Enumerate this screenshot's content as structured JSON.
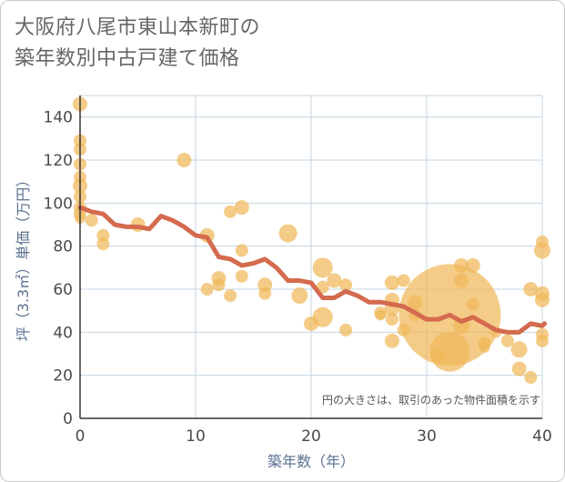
{
  "title_lines": [
    "大阪府八尾市東山本新町の",
    "築年数別中古戸建て価格"
  ],
  "note": "円の大きさは、取引のあった物件面積を示す",
  "colors": {
    "bubble": "#f0b85a",
    "line": "#d46a4e",
    "grid": "#c5d6e2",
    "axis": "#333333"
  },
  "chart_data": {
    "type": "scatter",
    "xlabel": "築年数（年）",
    "ylabel": "坪（3.3㎡）単価（万円）",
    "xlim": [
      0,
      40
    ],
    "ylim": [
      0,
      150
    ],
    "xticks": [
      0,
      10,
      20,
      30,
      40
    ],
    "yticks": [
      0,
      20,
      40,
      60,
      80,
      100,
      120,
      140
    ],
    "grid": true,
    "scatter": [
      {
        "x": 0,
        "y": 146,
        "s": 8
      },
      {
        "x": 0,
        "y": 129,
        "s": 7
      },
      {
        "x": 0,
        "y": 125,
        "s": 7
      },
      {
        "x": 0,
        "y": 118,
        "s": 7
      },
      {
        "x": 0,
        "y": 112,
        "s": 7
      },
      {
        "x": 0,
        "y": 108,
        "s": 8
      },
      {
        "x": 0,
        "y": 103,
        "s": 7
      },
      {
        "x": 0,
        "y": 98,
        "s": 7
      },
      {
        "x": 0,
        "y": 95,
        "s": 7
      },
      {
        "x": 0,
        "y": 93,
        "s": 6
      },
      {
        "x": 1,
        "y": 92,
        "s": 7
      },
      {
        "x": 2,
        "y": 85,
        "s": 7
      },
      {
        "x": 2,
        "y": 81,
        "s": 7
      },
      {
        "x": 5,
        "y": 90,
        "s": 8
      },
      {
        "x": 9,
        "y": 120,
        "s": 8
      },
      {
        "x": 11,
        "y": 85,
        "s": 8
      },
      {
        "x": 11,
        "y": 60,
        "s": 7
      },
      {
        "x": 12,
        "y": 65,
        "s": 8
      },
      {
        "x": 12,
        "y": 62,
        "s": 7
      },
      {
        "x": 13,
        "y": 96,
        "s": 7
      },
      {
        "x": 13,
        "y": 57,
        "s": 7
      },
      {
        "x": 14,
        "y": 98,
        "s": 8
      },
      {
        "x": 14,
        "y": 78,
        "s": 7
      },
      {
        "x": 14,
        "y": 66,
        "s": 7
      },
      {
        "x": 16,
        "y": 62,
        "s": 8
      },
      {
        "x": 16,
        "y": 58,
        "s": 7
      },
      {
        "x": 18,
        "y": 86,
        "s": 10
      },
      {
        "x": 19,
        "y": 57,
        "s": 9
      },
      {
        "x": 20,
        "y": 44,
        "s": 8
      },
      {
        "x": 21,
        "y": 70,
        "s": 11
      },
      {
        "x": 21,
        "y": 61,
        "s": 7
      },
      {
        "x": 21,
        "y": 47,
        "s": 11
      },
      {
        "x": 22,
        "y": 64,
        "s": 8
      },
      {
        "x": 23,
        "y": 62,
        "s": 7
      },
      {
        "x": 23,
        "y": 41,
        "s": 7
      },
      {
        "x": 26,
        "y": 49,
        "s": 7
      },
      {
        "x": 26,
        "y": 48,
        "s": 6
      },
      {
        "x": 27,
        "y": 63,
        "s": 8
      },
      {
        "x": 27,
        "y": 55,
        "s": 8
      },
      {
        "x": 27,
        "y": 51,
        "s": 8
      },
      {
        "x": 27,
        "y": 46,
        "s": 7
      },
      {
        "x": 27,
        "y": 36,
        "s": 8
      },
      {
        "x": 28,
        "y": 64,
        "s": 7
      },
      {
        "x": 28,
        "y": 41,
        "s": 7
      },
      {
        "x": 29,
        "y": 54,
        "s": 8
      },
      {
        "x": 29,
        "y": 48,
        "s": 7
      },
      {
        "x": 31,
        "y": 29,
        "s": 8
      },
      {
        "x": 32,
        "y": 48,
        "s": 56
      },
      {
        "x": 32,
        "y": 31,
        "s": 22
      },
      {
        "x": 33,
        "y": 71,
        "s": 8
      },
      {
        "x": 33,
        "y": 64,
        "s": 8
      },
      {
        "x": 33,
        "y": 43,
        "s": 9
      },
      {
        "x": 34,
        "y": 71,
        "s": 8
      },
      {
        "x": 34,
        "y": 53,
        "s": 7
      },
      {
        "x": 35,
        "y": 35,
        "s": 7
      },
      {
        "x": 35,
        "y": 33,
        "s": 6
      },
      {
        "x": 36,
        "y": 40,
        "s": 6
      },
      {
        "x": 37,
        "y": 36,
        "s": 7
      },
      {
        "x": 38,
        "y": 32,
        "s": 9
      },
      {
        "x": 38,
        "y": 23,
        "s": 8
      },
      {
        "x": 39,
        "y": 60,
        "s": 8
      },
      {
        "x": 39,
        "y": 19,
        "s": 7
      },
      {
        "x": 40,
        "y": 78,
        "s": 9
      },
      {
        "x": 40,
        "y": 58,
        "s": 8
      },
      {
        "x": 40,
        "y": 39,
        "s": 7
      },
      {
        "x": 40,
        "y": 82,
        "s": 7
      },
      {
        "x": 40,
        "y": 55,
        "s": 8
      },
      {
        "x": 40,
        "y": 36,
        "s": 7
      }
    ],
    "line": [
      {
        "x": 0,
        "y": 98
      },
      {
        "x": 1,
        "y": 96
      },
      {
        "x": 2,
        "y": 95
      },
      {
        "x": 3,
        "y": 90
      },
      {
        "x": 4,
        "y": 89
      },
      {
        "x": 5,
        "y": 89
      },
      {
        "x": 6,
        "y": 88
      },
      {
        "x": 7,
        "y": 94
      },
      {
        "x": 8,
        "y": 92
      },
      {
        "x": 9,
        "y": 89
      },
      {
        "x": 10,
        "y": 85
      },
      {
        "x": 11,
        "y": 84
      },
      {
        "x": 12,
        "y": 75
      },
      {
        "x": 13,
        "y": 74
      },
      {
        "x": 14,
        "y": 71
      },
      {
        "x": 15,
        "y": 72
      },
      {
        "x": 16,
        "y": 74
      },
      {
        "x": 17,
        "y": 70
      },
      {
        "x": 18,
        "y": 64
      },
      {
        "x": 19,
        "y": 64
      },
      {
        "x": 20,
        "y": 63
      },
      {
        "x": 21,
        "y": 56
      },
      {
        "x": 22,
        "y": 56
      },
      {
        "x": 23,
        "y": 59
      },
      {
        "x": 24,
        "y": 57
      },
      {
        "x": 25,
        "y": 54
      },
      {
        "x": 26,
        "y": 54
      },
      {
        "x": 27,
        "y": 53
      },
      {
        "x": 28,
        "y": 52
      },
      {
        "x": 29,
        "y": 49
      },
      {
        "x": 30,
        "y": 46
      },
      {
        "x": 31,
        "y": 46
      },
      {
        "x": 32,
        "y": 48
      },
      {
        "x": 33,
        "y": 45
      },
      {
        "x": 34,
        "y": 47
      },
      {
        "x": 35,
        "y": 44
      },
      {
        "x": 36,
        "y": 41
      },
      {
        "x": 37,
        "y": 40
      },
      {
        "x": 38,
        "y": 40
      },
      {
        "x": 39,
        "y": 44
      },
      {
        "x": 40,
        "y": 43
      },
      {
        "x": 40.2,
        "y": 44
      }
    ]
  }
}
